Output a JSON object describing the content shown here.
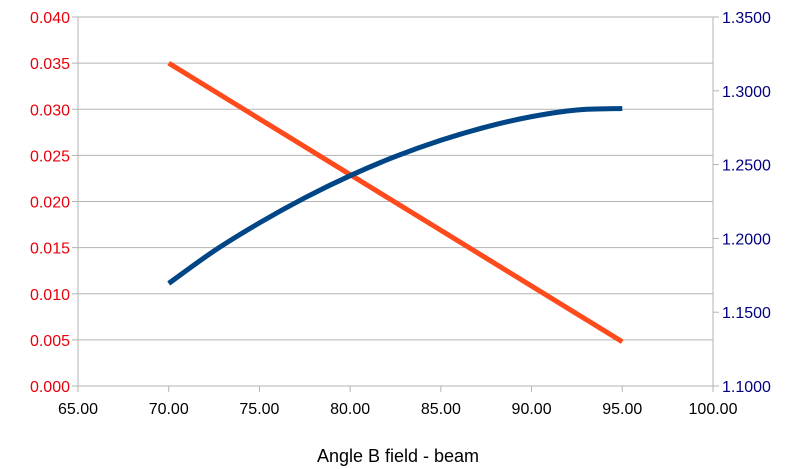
{
  "chart_data": {
    "type": "line",
    "title": "",
    "xlabel": "Angle B field - beam",
    "ylabel": "",
    "y2label": "",
    "grid": true,
    "legend": "none",
    "x_axis": {
      "range": [
        65,
        100
      ],
      "ticks": [
        "65.00",
        "70.00",
        "75.00",
        "80.00",
        "85.00",
        "90.00",
        "95.00",
        "100.00"
      ]
    },
    "y_left": {
      "range": [
        0,
        0.04
      ],
      "color": "#e8000b",
      "ticks": [
        "0.000",
        "0.005",
        "0.010",
        "0.015",
        "0.020",
        "0.025",
        "0.030",
        "0.035",
        "0.040"
      ]
    },
    "y_right": {
      "range": [
        1.1,
        1.35
      ],
      "color": "#000080",
      "ticks": [
        "1.1000",
        "1.1500",
        "1.2000",
        "1.2500",
        "1.3000",
        "1.3500"
      ]
    },
    "series": [
      {
        "axis": "left",
        "color": "#ff4a1c",
        "x": [
          70,
          95
        ],
        "y": [
          0.035,
          0.0048
        ]
      },
      {
        "axis": "right",
        "color": "#004586",
        "x": [
          70,
          72.5,
          75,
          77.5,
          80,
          82.5,
          85,
          87.5,
          90,
          92.5,
          95
        ],
        "y": [
          1.1695,
          1.1915,
          1.2105,
          1.2275,
          1.2425,
          1.2555,
          1.2665,
          1.2755,
          1.2825,
          1.287,
          1.288
        ]
      }
    ]
  }
}
